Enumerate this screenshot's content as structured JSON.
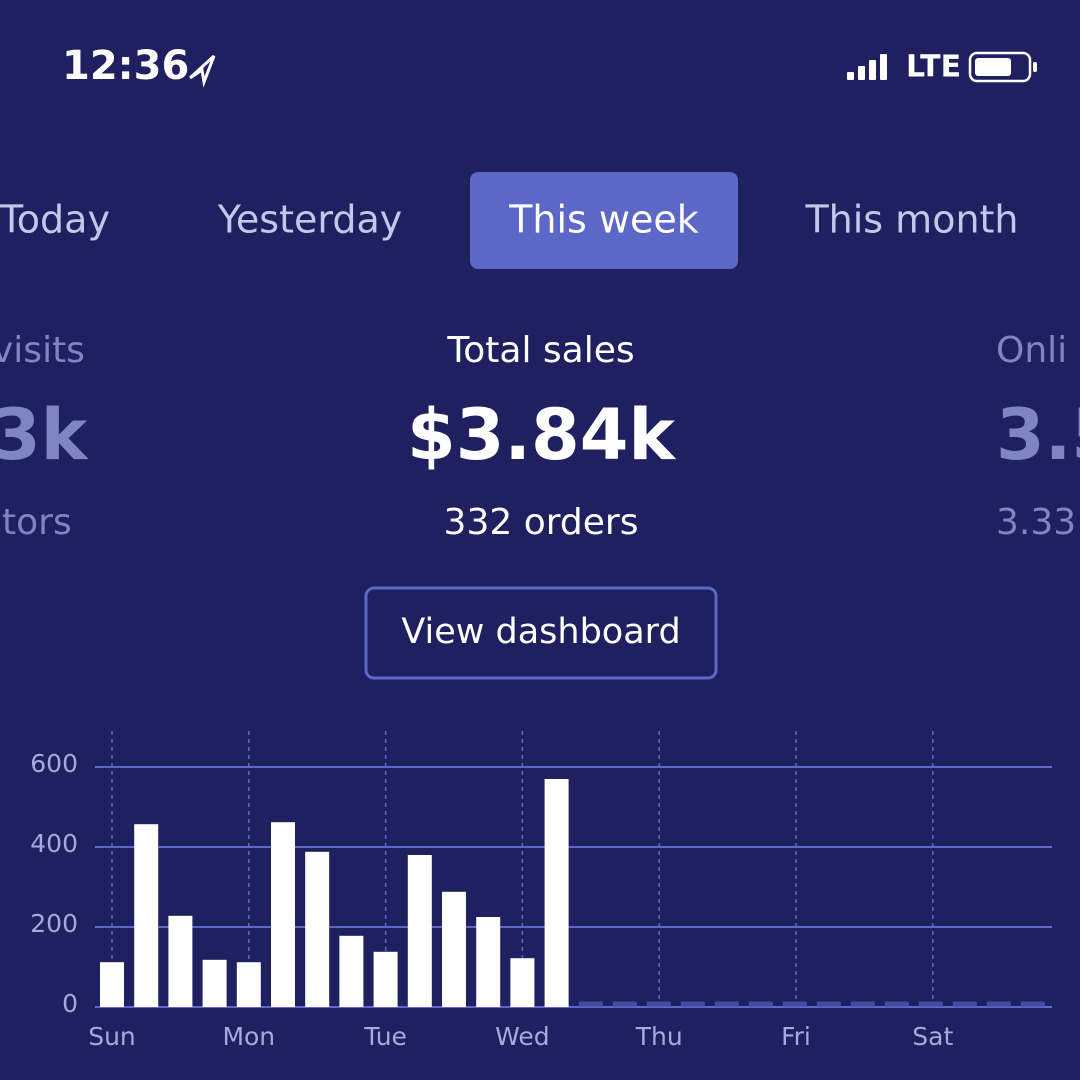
{
  "status_bar": {
    "time": "12:36",
    "network": "LTE"
  },
  "tabs": [
    "Today",
    "Yesterday",
    "This week",
    "This month"
  ],
  "selected_tab": 2,
  "metrics": [
    {
      "label": "visits",
      "value": "3k",
      "detail": "itors"
    },
    {
      "label": "Total sales",
      "value": "$3.84k",
      "detail": "332 orders"
    },
    {
      "label": "Onli",
      "value": "3.5",
      "detail": "3.33"
    }
  ],
  "button": "View dashboard",
  "chart_data": {
    "type": "bar",
    "categories": [
      "Sun",
      null,
      null,
      null,
      "Mon",
      null,
      null,
      null,
      "Tue",
      null,
      null,
      null,
      "Wed",
      null,
      null,
      null,
      "Thu",
      null,
      null,
      null,
      "Fri",
      null,
      null,
      null,
      "Sat",
      null,
      null,
      null
    ],
    "values": [
      112,
      457,
      228,
      118,
      112,
      462,
      388,
      178,
      138,
      380,
      288,
      225,
      122,
      570,
      null,
      null,
      null,
      null,
      null,
      null,
      null,
      null,
      null,
      null,
      null,
      null,
      null,
      null
    ],
    "color": "#ffffff",
    "ylim": [
      0,
      690
    ],
    "yticks": [
      0,
      200,
      400,
      600
    ],
    "grid": true
  }
}
